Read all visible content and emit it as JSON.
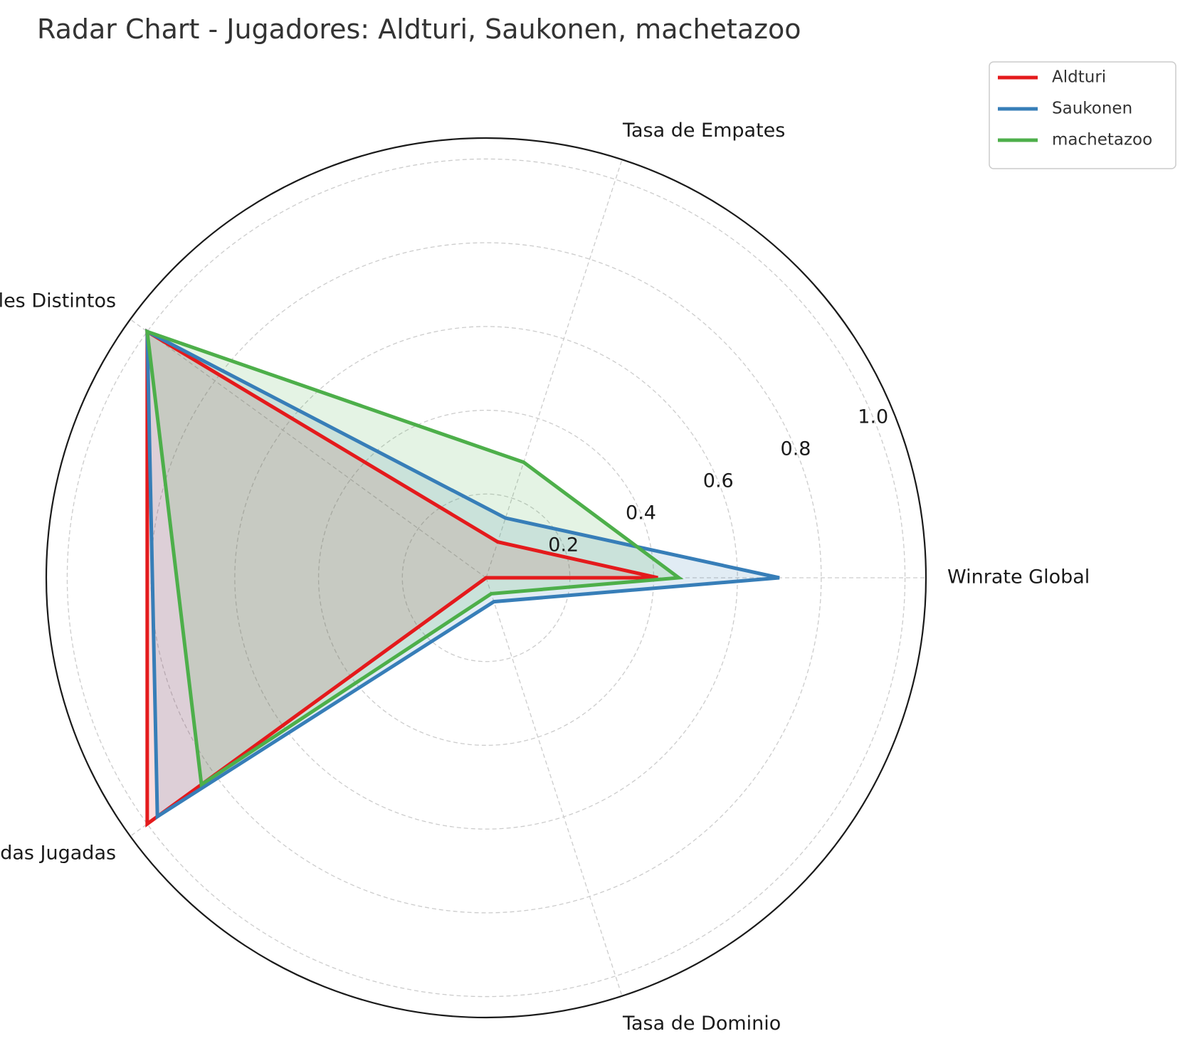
{
  "chart_data": {
    "type": "radar",
    "title": "Radar Chart - Jugadores: Aldturi, Saukonen, machetazoo",
    "axes": [
      "Winrate Global",
      "Tasa de Empates",
      "Rivales Distintos",
      "Partidas Jugadas",
      "Tasa de Dominio"
    ],
    "rlim": [
      0,
      1.05
    ],
    "rticks": [
      0.2,
      0.4,
      0.6,
      0.8,
      1.0
    ],
    "rtick_labels": [
      "0.2",
      "0.4",
      "0.6",
      "0.8",
      "1.0"
    ],
    "grid": true,
    "legend_position": "top-right outside",
    "series": [
      {
        "name": "Aldturi",
        "color": "#e41a1c",
        "values": [
          0.41,
          0.09,
          1.0,
          1.0,
          0.0
        ]
      },
      {
        "name": "Saukonen",
        "color": "#377eb8",
        "values": [
          0.7,
          0.15,
          1.0,
          0.97,
          0.06
        ]
      },
      {
        "name": "machetazoo",
        "color": "#4daf4a",
        "values": [
          0.46,
          0.29,
          1.0,
          0.84,
          0.04
        ]
      }
    ]
  }
}
